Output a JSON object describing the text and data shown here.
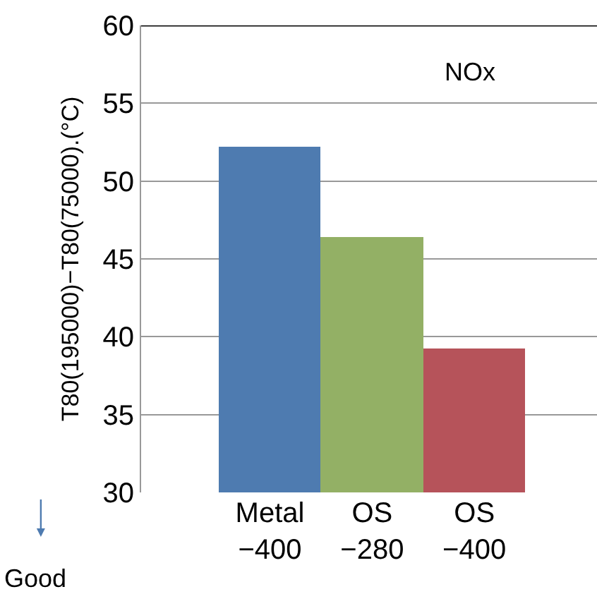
{
  "chart_data": {
    "type": "bar",
    "ylabel": "T80(195000)−T80(75000).(°C)",
    "categories": [
      "Metal\n−400",
      "OS\n−280",
      "OS\n−400"
    ],
    "values": [
      52.2,
      46.4,
      39.2
    ],
    "colors": [
      "#4e7bb0",
      "#93b065",
      "#b6535a"
    ],
    "ylim": [
      30,
      60
    ],
    "yticks": [
      30,
      35,
      40,
      45,
      50,
      55,
      60
    ],
    "grid": "y",
    "annotations": [
      "NOx",
      "Good"
    ],
    "legend": false
  }
}
